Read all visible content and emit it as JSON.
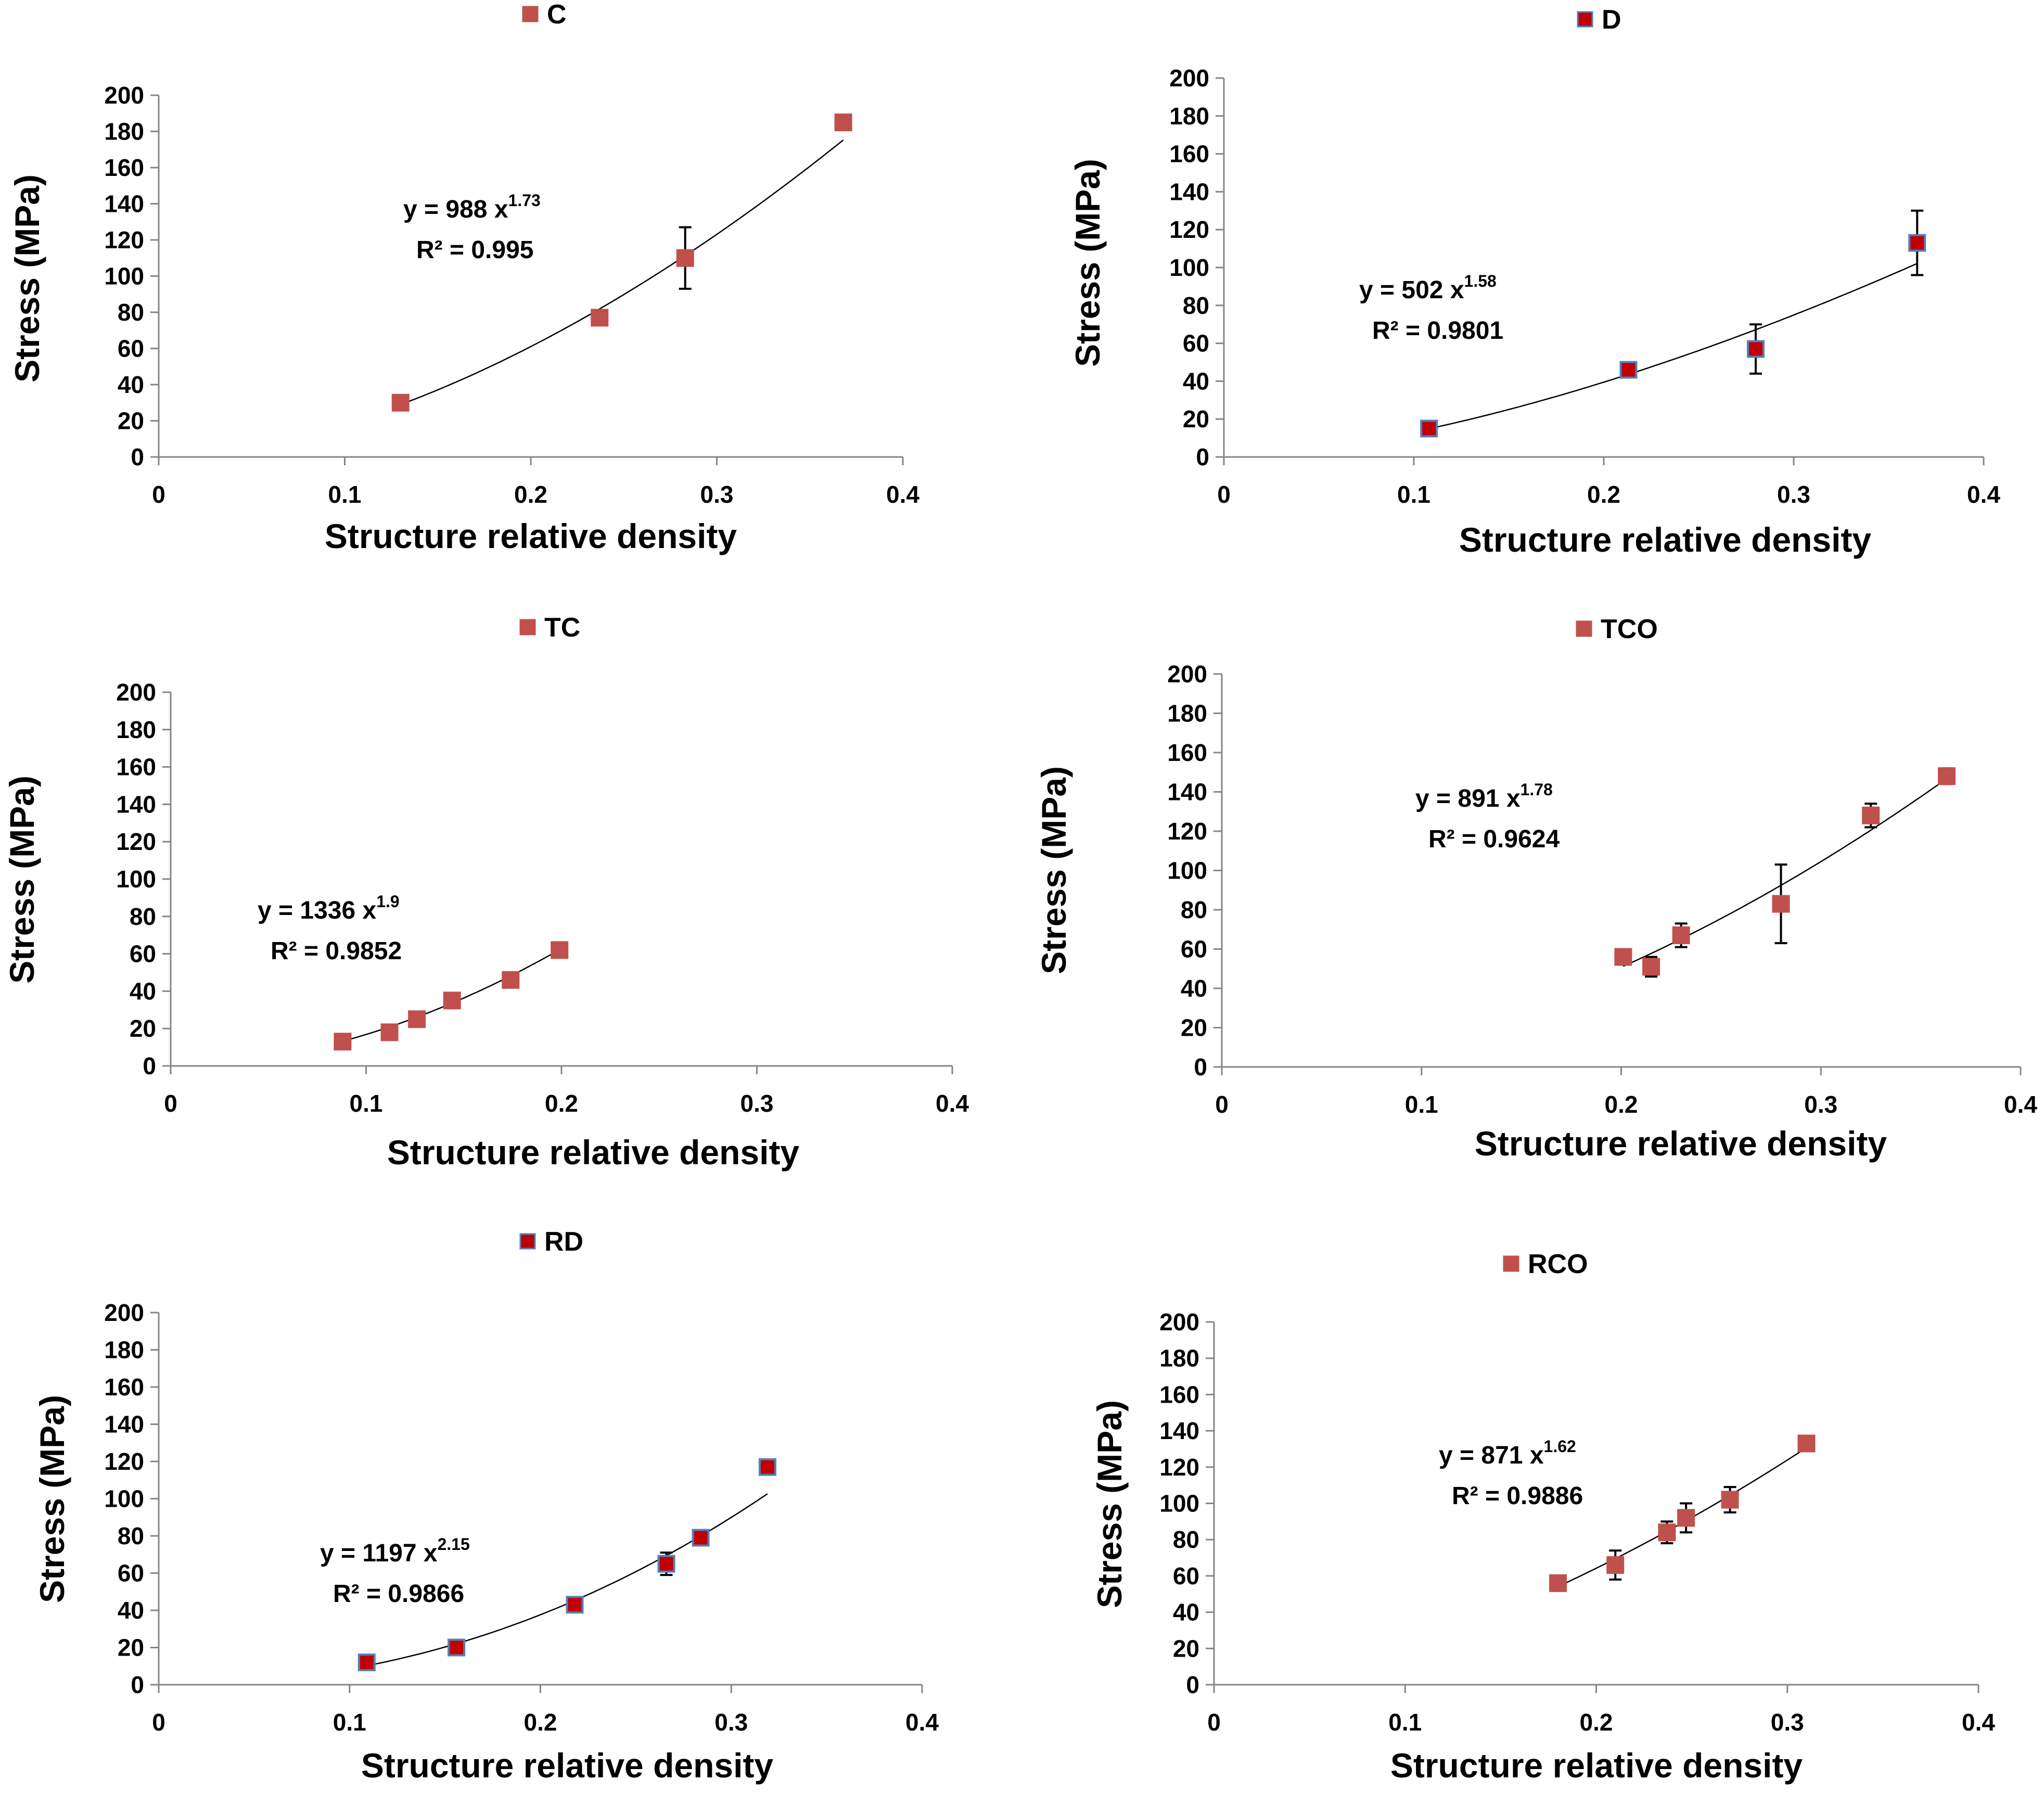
{
  "colors": {
    "red_marker": "#c0504d",
    "dark_red_marker": "#c00000",
    "blue_outline": "#4f81bd",
    "axis": "#868686",
    "fit": "#000000"
  },
  "chart_data": [
    {
      "type": "scatter",
      "legend": "C",
      "marker": "red",
      "title": "",
      "xlabel": "Structure relative density",
      "ylabel": "Stress (MPa)",
      "xlim": [
        0,
        0.4
      ],
      "ylim": [
        0,
        200
      ],
      "xticks": [
        "0",
        "0.1",
        "0.2",
        "0.3",
        "0.4"
      ],
      "yticks": [
        "0",
        "20",
        "40",
        "60",
        "80",
        "100",
        "120",
        "140",
        "160",
        "180",
        "200"
      ],
      "x": [
        0.13,
        0.237,
        0.283,
        0.368
      ],
      "y": [
        30,
        77,
        110,
        185
      ],
      "err": [
        0,
        0,
        17,
        0
      ],
      "fit": {
        "a": 988,
        "b": 1.73,
        "from": 0.13,
        "to": 0.368
      },
      "equation": {
        "prefix": "y = 988  x",
        "exp": "1.73",
        "r2": "R² = 0.995"
      }
    },
    {
      "type": "scatter",
      "legend": "D",
      "marker": "darkred",
      "title": "",
      "xlabel": "Structure relative density",
      "ylabel": "Stress (MPa)",
      "xlim": [
        0,
        0.4
      ],
      "ylim": [
        0,
        200
      ],
      "xticks": [
        "0",
        "0.1",
        "0.2",
        "0.3",
        "0.4"
      ],
      "yticks": [
        "0",
        "20",
        "40",
        "60",
        "80",
        "100",
        "120",
        "140",
        "160",
        "180",
        "200"
      ],
      "x": [
        0.108,
        0.213,
        0.28,
        0.365
      ],
      "y": [
        15,
        46,
        57,
        113
      ],
      "err": [
        0,
        0,
        13,
        17
      ],
      "fit": {
        "a": 502,
        "b": 1.58,
        "from": 0.108,
        "to": 0.365
      },
      "equation": {
        "prefix": "y = 502  x",
        "exp": "1.58",
        "r2": "R² = 0.9801"
      }
    },
    {
      "type": "scatter",
      "legend": "TC",
      "marker": "red",
      "title": "",
      "xlabel": "Structure relative density",
      "ylabel": "Stress (MPa)",
      "xlim": [
        0,
        0.4
      ],
      "ylim": [
        0,
        200
      ],
      "xticks": [
        "0",
        "0.1",
        "0.2",
        "0.3",
        "0.4"
      ],
      "yticks": [
        "0",
        "20",
        "40",
        "60",
        "80",
        "100",
        "120",
        "140",
        "160",
        "180",
        "200"
      ],
      "x": [
        0.088,
        0.112,
        0.126,
        0.144,
        0.174,
        0.199
      ],
      "y": [
        13,
        18,
        25,
        35,
        46,
        62
      ],
      "err": [
        0,
        0,
        0,
        0,
        0,
        0
      ],
      "fit": {
        "a": 1336,
        "b": 1.9,
        "from": 0.088,
        "to": 0.199
      },
      "equation": {
        "prefix": "y = 1336  x",
        "exp": "1.9",
        "r2": "R² = 0.9852"
      }
    },
    {
      "type": "scatter",
      "legend": "TCO",
      "marker": "red",
      "title": "",
      "xlabel": "Structure relative density",
      "ylabel": "Stress (MPa)",
      "xlim": [
        0,
        0.4
      ],
      "ylim": [
        0,
        200
      ],
      "xticks": [
        "0",
        "0.1",
        "0.2",
        "0.3",
        "0.4"
      ],
      "yticks": [
        "0",
        "20",
        "40",
        "60",
        "80",
        "100",
        "120",
        "140",
        "160",
        "180",
        "200"
      ],
      "x": [
        0.201,
        0.215,
        0.23,
        0.28,
        0.325,
        0.363
      ],
      "y": [
        56,
        51,
        67,
        83,
        128,
        148
      ],
      "err": [
        0,
        5,
        6,
        20,
        6,
        4
      ],
      "fit": {
        "a": 891,
        "b": 1.78,
        "from": 0.201,
        "to": 0.363
      },
      "equation": {
        "prefix": "y = 891  x",
        "exp": "1.78",
        "r2": "R² = 0.9624"
      }
    },
    {
      "type": "scatter",
      "legend": "RD",
      "marker": "darkred",
      "title": "",
      "xlabel": "Structure relative density",
      "ylabel": "Stress (MPa)",
      "xlim": [
        0,
        0.4
      ],
      "ylim": [
        0,
        200
      ],
      "xticks": [
        "0",
        "0.1",
        "0.2",
        "0.3",
        "0.4"
      ],
      "yticks": [
        "0",
        "20",
        "40",
        "60",
        "80",
        "100",
        "120",
        "140",
        "160",
        "180",
        "200"
      ],
      "x": [
        0.109,
        0.156,
        0.218,
        0.266,
        0.284,
        0.319
      ],
      "y": [
        12,
        20,
        43,
        65,
        79,
        117
      ],
      "err": [
        0,
        0,
        0,
        6,
        0,
        0
      ],
      "fit": {
        "a": 1197,
        "b": 2.15,
        "from": 0.109,
        "to": 0.319
      },
      "equation": {
        "prefix": "y = 1197  x",
        "exp": "2.15",
        "r2": "R² = 0.9866"
      }
    },
    {
      "type": "scatter",
      "legend": "RCO",
      "marker": "red",
      "title": "",
      "xlabel": "Structure relative density",
      "ylabel": "Stress (MPa)",
      "xlim": [
        0,
        0.4
      ],
      "ylim": [
        0,
        200
      ],
      "xticks": [
        "0",
        "0.1",
        "0.2",
        "0.3",
        "0.4"
      ],
      "yticks": [
        "0",
        "20",
        "40",
        "60",
        "80",
        "100",
        "120",
        "140",
        "160",
        "180",
        "200"
      ],
      "x": [
        0.18,
        0.21,
        0.237,
        0.247,
        0.27,
        0.31
      ],
      "y": [
        56,
        66,
        84,
        92,
        102,
        133
      ],
      "err": [
        0,
        8,
        6,
        8,
        7,
        0
      ],
      "fit": {
        "a": 871,
        "b": 1.62,
        "from": 0.18,
        "to": 0.31
      },
      "equation": {
        "prefix": "y = 871  x",
        "exp": "1.62",
        "r2": "R² = 0.9886"
      }
    }
  ]
}
